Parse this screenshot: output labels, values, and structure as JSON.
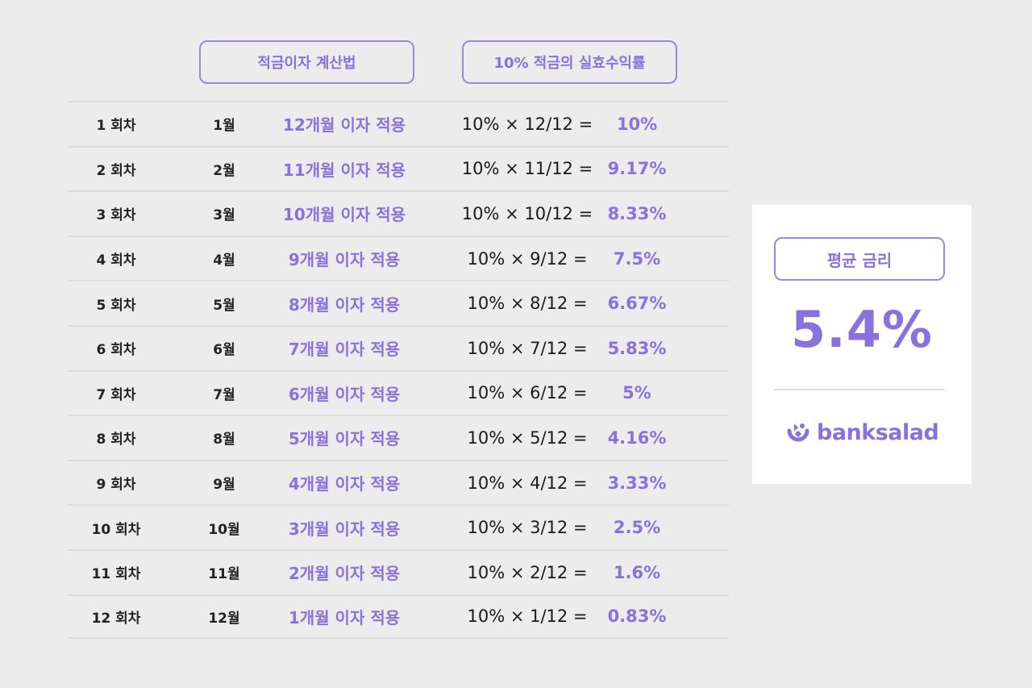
{
  "headers": {
    "method": "적금이자 계산법",
    "yield": "10% 적금의 실효수익률"
  },
  "rows": [
    {
      "round": "1 회차",
      "month": "1월",
      "apply": "12개월 이자 적용",
      "formula": "10% × 12/12 =",
      "rate": "10%"
    },
    {
      "round": "2 회차",
      "month": "2월",
      "apply": "11개월 이자 적용",
      "formula": "10% × 11/12 =",
      "rate": "9.17%"
    },
    {
      "round": "3 회차",
      "month": "3월",
      "apply": "10개월 이자 적용",
      "formula": "10% × 10/12 =",
      "rate": "8.33%"
    },
    {
      "round": "4 회차",
      "month": "4월",
      "apply": "9개월 이자 적용",
      "formula": "10% × 9/12 =",
      "rate": "7.5%"
    },
    {
      "round": "5 회차",
      "month": "5월",
      "apply": "8개월 이자 적용",
      "formula": "10% × 8/12 =",
      "rate": "6.67%"
    },
    {
      "round": "6 회차",
      "month": "6월",
      "apply": "7개월 이자 적용",
      "formula": "10% × 7/12 =",
      "rate": "5.83%"
    },
    {
      "round": "7 회차",
      "month": "7월",
      "apply": "6개월 이자 적용",
      "formula": "10% × 6/12 =",
      "rate": "5%"
    },
    {
      "round": "8 회차",
      "month": "8월",
      "apply": "5개월 이자 적용",
      "formula": "10% × 5/12 =",
      "rate": "4.16%"
    },
    {
      "round": "9 회차",
      "month": "9월",
      "apply": "4개월 이자 적용",
      "formula": "10% × 4/12 =",
      "rate": "3.33%"
    },
    {
      "round": "10 회차",
      "month": "10월",
      "apply": "3개월 이자 적용",
      "formula": "10% × 3/12 =",
      "rate": "2.5%"
    },
    {
      "round": "11 회차",
      "month": "11월",
      "apply": "2개월 이자 적용",
      "formula": "10% × 2/12 =",
      "rate": "1.6%"
    },
    {
      "round": "12 회차",
      "month": "12월",
      "apply": "1개월 이자 적용",
      "formula": "10% × 1/12 =",
      "rate": "0.83%"
    }
  ],
  "summary": {
    "label": "평균 금리",
    "value": "5.4%"
  },
  "brand": {
    "name": "banksalad",
    "icon": "banksalad-logo-icon"
  },
  "colors": {
    "accent": "#8a72dc",
    "background": "#ececec",
    "card": "#ffffff"
  }
}
